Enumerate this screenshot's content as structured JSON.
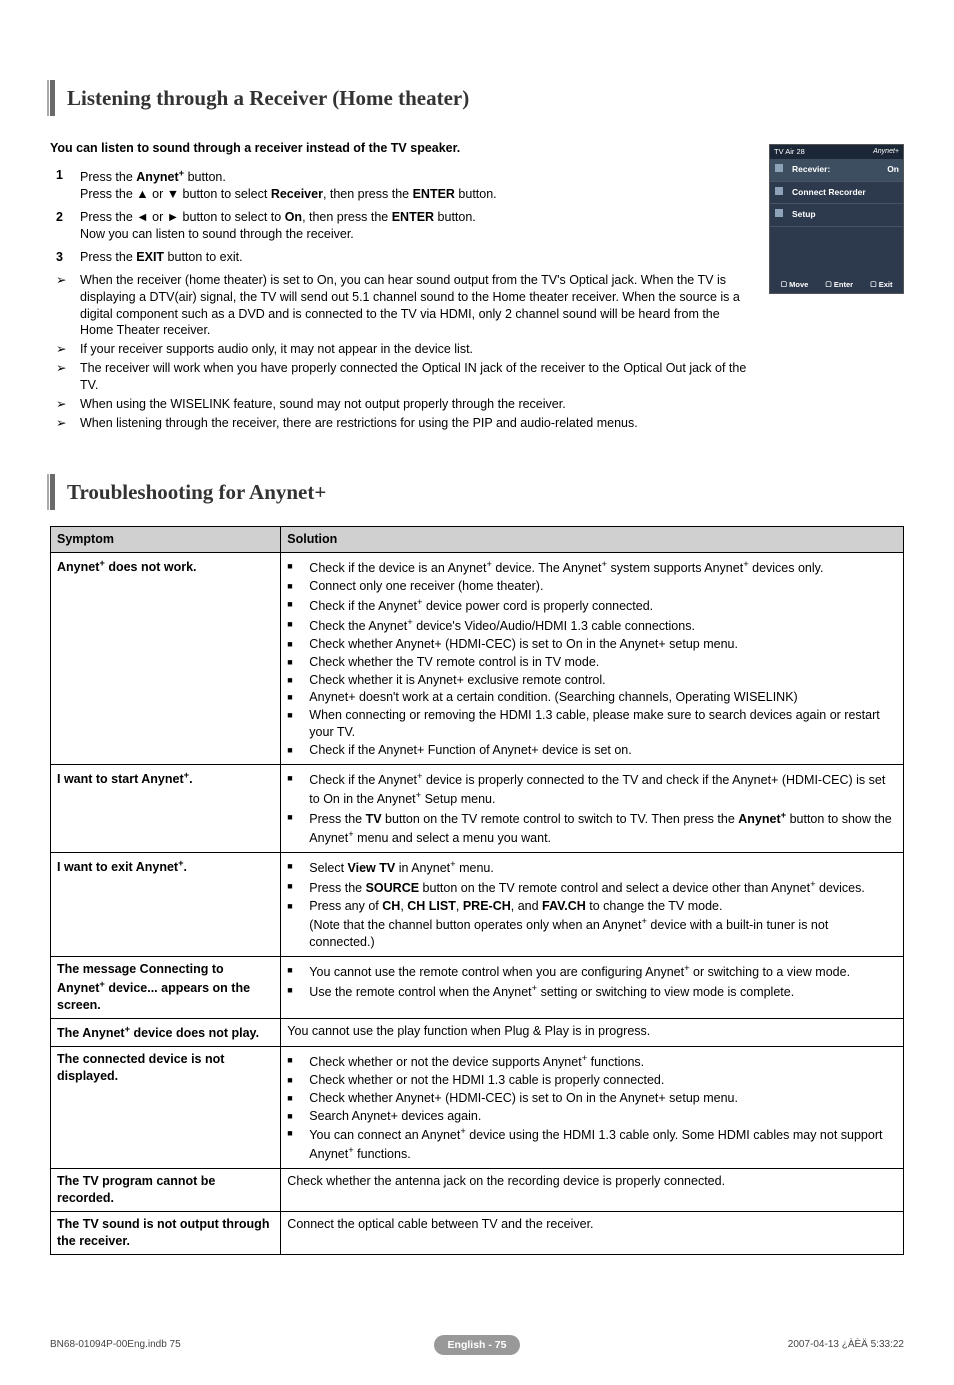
{
  "section1": {
    "title": "Listening through a Receiver (Home theater)",
    "intro": "You can listen to sound through a receiver instead of the TV speaker.",
    "steps": [
      {
        "n": "1",
        "html": "Press the <b>Anynet<sup>+</sup></b> button.<br>Press the ▲ or ▼ button to select <b>Receiver</b>, then press the <b>ENTER</b> button."
      },
      {
        "n": "2",
        "html": "Press the ◄ or ► button to select to <b>On</b>, then press the <b>ENTER</b> button.<br>Now you can listen to sound through the receiver."
      },
      {
        "n": "3",
        "html": "Press the <b>EXIT</b> button to exit."
      }
    ],
    "notes": [
      "When the receiver (home theater) is set to On, you can hear sound output from the TV's Optical jack. When the TV is displaying a DTV(air) signal, the TV will send out 5.1 channel sound to the Home theater receiver. When the source is a digital component such as a DVD and is connected to the TV via HDMI, only 2 channel sound will be heard from the Home Theater receiver.",
      "If your receiver supports audio only, it may not appear in the device list.",
      "The receiver will work when you have properly connected the Optical IN jack of the receiver to the Optical Out jack of the TV.",
      "When using the WISELINK feature, sound may not output properly through the receiver.",
      "When listening through the receiver, there are restrictions for using the PIP and audio-related menus."
    ]
  },
  "osd": {
    "header": "TV Air 28",
    "rows": [
      {
        "label": "Recevier:",
        "value": "On",
        "highlight": true,
        "icon": "speaker-icon"
      },
      {
        "label": "Connect Recorder",
        "icon": "link-icon"
      },
      {
        "label": "Setup",
        "icon": "gear-icon"
      }
    ],
    "footer": [
      {
        "icon": "updown-icon",
        "label": "Move"
      },
      {
        "icon": "enter-icon",
        "label": "Enter"
      },
      {
        "icon": "exit-icon",
        "label": "Exit"
      }
    ]
  },
  "section2": {
    "title": "Troubleshooting for Anynet+",
    "thSymptom": "Symptom",
    "thSolution": "Solution",
    "rows": [
      {
        "symptom": "Anynet<sup>+</sup> does not work.",
        "solutions": [
          "Check if the device is an Anynet<sup>+</sup> device. The Anynet<sup>+</sup> system supports Anynet<sup>+</sup> devices only.",
          "Connect only one receiver (home theater).",
          "Check if the Anynet<sup>+</sup> device power cord is properly connected.",
          "Check the Anynet<sup>+</sup> device's Video/Audio/HDMI 1.3 cable connections.",
          "Check whether Anynet+ (HDMI-CEC) is set to On in the Anynet+ setup menu.",
          "Check whether the TV remote control is in TV mode.",
          "Check whether it is Anynet+ exclusive remote control.",
          "Anynet+ doesn't work at a certain condition. (Searching channels, Operating WISELINK)",
          "When connecting or removing the HDMI 1.3 cable, please make sure to search devices again or restart your TV.",
          "Check if the Anynet+ Function of Anynet+ device is set on."
        ]
      },
      {
        "symptom": "I want to start Anynet<sup>+</sup>.",
        "solutions": [
          "Check if the Anynet<sup>+</sup> device is properly connected to the TV and check if the Anynet+ (HDMI-CEC) is set to On in the Anynet<sup>+</sup> Setup menu.",
          "Press the <b>TV</b> button on the TV remote control to switch to TV. Then press the <b>Anynet<sup>+</sup></b> button to show the Anynet<sup>+</sup> menu and select a menu you want."
        ]
      },
      {
        "symptom": "I want to exit Anynet<sup>+</sup>.",
        "solutions": [
          "Select <b>View TV</b> in Anynet<sup>+</sup> menu.",
          " Press the <b>SOURCE</b> button on the TV remote control and select a device other than Anynet<sup>+</sup> devices.",
          "Press any of <b>CH</b>, <b>CH LIST</b>, <b>PRE-CH</b>, and <b>FAV.CH</b> to change the TV mode.<br>(Note that the channel button operates only when an Anynet<sup>+</sup> device with a built-in tuner is not connected.)"
        ]
      },
      {
        "symptom": "The message Connecting to Anynet<sup>+</sup> device... appears on the screen.",
        "solutions": [
          "You cannot use the remote control when you are configuring Anynet<sup>+</sup> or switching to a view mode.",
          "Use the remote control when the Anynet<sup>+</sup> setting or switching to view mode is complete."
        ]
      },
      {
        "symptom": "The Anynet<sup>+</sup> device does not play.",
        "plain": "You cannot use the play function when Plug & Play is in progress."
      },
      {
        "symptom": "The connected device is not displayed.",
        "solutions": [
          "Check whether or not the device supports Anynet<sup>+</sup> functions.",
          "Check whether or not the HDMI 1.3 cable is properly connected.",
          "Check whether Anynet+ (HDMI-CEC) is set to On in the Anynet+ setup menu.",
          "Search Anynet+ devices again.",
          "You can connect an Anynet<sup>+</sup> device using the HDMI 1.3 cable only. Some HDMI cables may not support Anynet<sup>+</sup> functions."
        ]
      },
      {
        "symptom": "The TV program cannot be recorded.",
        "plain": "Check whether the antenna jack on the recording device is properly connected."
      },
      {
        "symptom": "The TV sound is not output through the receiver.",
        "plain": "Connect the optical cable between TV and the receiver."
      }
    ]
  },
  "footer": {
    "page": "English - 75",
    "left": "BN68-01094P-00Eng.indb   75",
    "right": "2007-04-13   ¿ÀÈÄ 5:33:22"
  }
}
